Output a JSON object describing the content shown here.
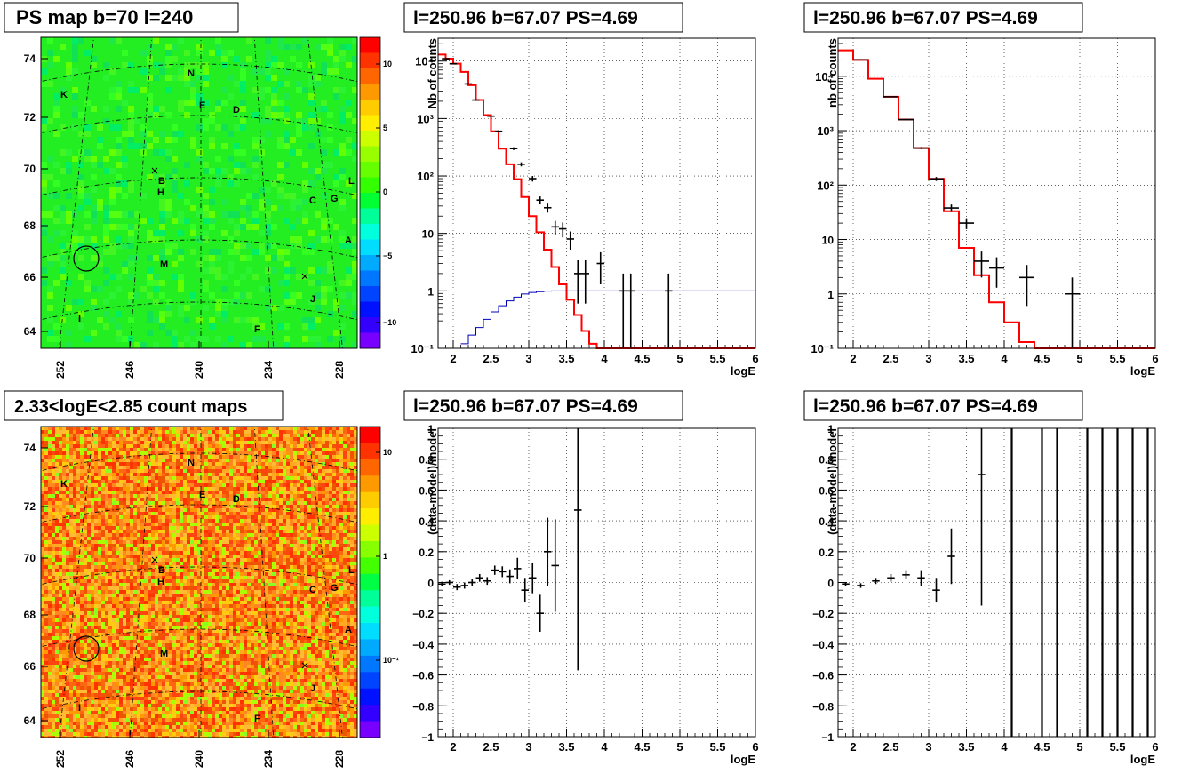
{
  "panels": {
    "map_top": {
      "title": "PS map b=70 l=240",
      "lat_ticks": [
        "64",
        "66",
        "68",
        "70",
        "72",
        "74"
      ],
      "lon_ticks": [
        "252",
        "246",
        "240",
        "234",
        "228"
      ],
      "colorbar_ticks": [
        "10",
        "5",
        "0",
        "−5",
        "−10"
      ],
      "colorbar_colors": [
        "#ff0000",
        "#ff3300",
        "#ff6600",
        "#ff9900",
        "#ffcc00",
        "#ffee00",
        "#ccff00",
        "#99ff00",
        "#66ff00",
        "#33ff00",
        "#00ff33",
        "#00ff99",
        "#00ffdd",
        "#00ddff",
        "#00aaff",
        "#0077ff",
        "#0044ff",
        "#0011ff",
        "#3300ff",
        "#7700ff"
      ],
      "background": "#22ee22",
      "source_labels": [
        "N",
        "K",
        "E",
        "D",
        "B",
        "H",
        "C",
        "G",
        "L",
        "A",
        "M",
        "J",
        "I",
        "F"
      ]
    },
    "map_bottom": {
      "title": "2.33<logE<2.85 count maps",
      "lat_ticks": [
        "64",
        "66",
        "68",
        "70",
        "72",
        "74"
      ],
      "lon_ticks": [
        "252",
        "246",
        "240",
        "234",
        "228"
      ],
      "colorbar_ticks": [
        "10",
        "1",
        "10⁻¹"
      ],
      "background": "#ff8822",
      "source_labels": [
        "N",
        "K",
        "E",
        "D",
        "B",
        "H",
        "C",
        "G",
        "L",
        "A",
        "M",
        "J",
        "I",
        "F"
      ]
    },
    "spec_mid": {
      "title": "l=250.96 b=67.07 PS=4.69"
    },
    "spec_right": {
      "title": "l=250.96 b=67.07 PS=4.69"
    },
    "resid_mid": {
      "title": "l=250.96 b=67.07 PS=4.69"
    },
    "resid_right": {
      "title": "l=250.96 b=67.07 PS=4.69"
    }
  },
  "chart_data": [
    {
      "type": "line",
      "title": "l=250.96 b=67.07 PS=4.69",
      "xlabel": "logE",
      "ylabel": "Nb of counts",
      "xlim": [
        1.8,
        6
      ],
      "ylim": [
        0.1,
        25000
      ],
      "yscale": "log",
      "grid": true,
      "x_ticks": [
        "2",
        "2.5",
        "3",
        "3.5",
        "4",
        "4.5",
        "5",
        "5.5",
        "6"
      ],
      "y_ticks": [
        "10⁻¹",
        "1",
        "10",
        "10²",
        "10³",
        "10⁴"
      ],
      "series": [
        {
          "color": "#ff0000",
          "kind": "step",
          "edges": [
            1.8,
            1.9,
            2.0,
            2.1,
            2.2,
            2.3,
            2.4,
            2.5,
            2.6,
            2.7,
            2.8,
            2.9,
            3.0,
            3.1,
            3.2,
            3.3,
            3.4,
            3.5,
            3.6,
            3.7,
            3.8,
            3.9,
            4.0,
            4.1,
            4.2,
            6.0
          ],
          "values": [
            13000,
            11000,
            9000,
            6500,
            3800,
            2100,
            1150,
            600,
            300,
            160,
            88,
            43,
            20,
            10.5,
            5.2,
            2.6,
            1.3,
            0.7,
            0.38,
            0.2,
            0.12,
            0.1,
            0.1,
            0.1,
            0.1
          ]
        },
        {
          "color": "#0000bb",
          "kind": "step",
          "edges": [
            2.1,
            2.2,
            2.3,
            2.4,
            2.5,
            2.6,
            2.7,
            2.8,
            2.9,
            3.0,
            3.1,
            3.2,
            3.3,
            3.4,
            3.5,
            6.0
          ],
          "values": [
            0.12,
            0.17,
            0.23,
            0.32,
            0.43,
            0.55,
            0.67,
            0.78,
            0.88,
            0.94,
            0.97,
            0.99,
            1.0,
            1.0,
            1.0
          ]
        },
        {
          "color": "#000000",
          "kind": "points",
          "points": [
            {
              "x": 1.9,
              "y": 11000,
              "ylo": 10900,
              "yhi": 11100,
              "xw": 0.05
            },
            {
              "x": 2.0,
              "y": 9000,
              "ylo": 8900,
              "yhi": 9100,
              "xw": 0.05
            },
            {
              "x": 2.2,
              "y": 4000,
              "ylo": 3930,
              "yhi": 4070,
              "xw": 0.05
            },
            {
              "x": 2.3,
              "y": 2100,
              "ylo": 2050,
              "yhi": 2150,
              "xw": 0.05
            },
            {
              "x": 2.5,
              "y": 1100,
              "ylo": 1070,
              "yhi": 1130,
              "xw": 0.05
            },
            {
              "x": 2.6,
              "y": 600,
              "ylo": 575,
              "yhi": 625,
              "xw": 0.05
            },
            {
              "x": 2.8,
              "y": 300,
              "ylo": 283,
              "yhi": 317,
              "xw": 0.05
            },
            {
              "x": 2.9,
              "y": 160,
              "ylo": 147,
              "yhi": 173,
              "xw": 0.05
            },
            {
              "x": 3.05,
              "y": 90,
              "ylo": 80,
              "yhi": 100,
              "xw": 0.05
            },
            {
              "x": 3.15,
              "y": 38,
              "ylo": 32,
              "yhi": 44,
              "xw": 0.05
            },
            {
              "x": 3.25,
              "y": 28,
              "ylo": 23,
              "yhi": 33,
              "xw": 0.05
            },
            {
              "x": 3.35,
              "y": 13,
              "ylo": 9.5,
              "yhi": 16.5,
              "xw": 0.05
            },
            {
              "x": 3.45,
              "y": 12,
              "ylo": 8.5,
              "yhi": 15.5,
              "xw": 0.05
            },
            {
              "x": 3.55,
              "y": 8,
              "ylo": 5.2,
              "yhi": 10.8,
              "xw": 0.05
            },
            {
              "x": 3.65,
              "y": 2,
              "ylo": 0.6,
              "yhi": 3.4,
              "xw": 0.05
            },
            {
              "x": 3.75,
              "y": 2,
              "ylo": 0.6,
              "yhi": 3.4,
              "xw": 0.05
            },
            {
              "x": 3.95,
              "y": 3,
              "ylo": 1.3,
              "yhi": 4.7,
              "xw": 0.05
            },
            {
              "x": 4.25,
              "y": 1,
              "ylo": 0.1,
              "yhi": 2,
              "xw": 0.05
            },
            {
              "x": 4.35,
              "y": 1,
              "ylo": 0.1,
              "yhi": 2,
              "xw": 0.05
            },
            {
              "x": 4.85,
              "y": 1,
              "ylo": 0.1,
              "yhi": 2,
              "xw": 0.05
            }
          ]
        }
      ]
    },
    {
      "type": "line",
      "title": "l=250.96 b=67.07 PS=4.69",
      "xlabel": "logE",
      "ylabel": "nb of counts",
      "xlim": [
        1.8,
        6
      ],
      "ylim": [
        0.1,
        50000
      ],
      "yscale": "log",
      "grid": true,
      "x_ticks": [
        "2",
        "2.5",
        "3",
        "3.5",
        "4",
        "4.5",
        "5",
        "5.5",
        "6"
      ],
      "y_ticks": [
        "10⁻¹",
        "1",
        "10",
        "10²",
        "10³",
        "10⁴"
      ],
      "series": [
        {
          "color": "#ff0000",
          "kind": "step",
          "edges": [
            1.8,
            2.0,
            2.2,
            2.4,
            2.6,
            2.8,
            3.0,
            3.2,
            3.4,
            3.6,
            3.8,
            4.0,
            4.2,
            4.4,
            6.0
          ],
          "values": [
            30000,
            20000,
            9000,
            4200,
            1600,
            480,
            130,
            33,
            7,
            2.2,
            0.7,
            0.3,
            0.13,
            0.1
          ]
        },
        {
          "color": "#000000",
          "kind": "points",
          "points": [
            {
              "x": 2.1,
              "y": 20000,
              "ylo": 19800,
              "yhi": 20200,
              "xw": 0.1
            },
            {
              "x": 2.5,
              "y": 4200,
              "ylo": 4130,
              "yhi": 4270,
              "xw": 0.1
            },
            {
              "x": 2.7,
              "y": 1600,
              "ylo": 1560,
              "yhi": 1640,
              "xw": 0.1
            },
            {
              "x": 2.9,
              "y": 480,
              "ylo": 460,
              "yhi": 500,
              "xw": 0.1
            },
            {
              "x": 3.1,
              "y": 130,
              "ylo": 119,
              "yhi": 141,
              "xw": 0.1
            },
            {
              "x": 3.3,
              "y": 38,
              "ylo": 32,
              "yhi": 44,
              "xw": 0.1
            },
            {
              "x": 3.5,
              "y": 20,
              "ylo": 15.5,
              "yhi": 24.5,
              "xw": 0.1
            },
            {
              "x": 3.7,
              "y": 4,
              "ylo": 2,
              "yhi": 6,
              "xw": 0.1
            },
            {
              "x": 3.9,
              "y": 3,
              "ylo": 1.3,
              "yhi": 4.7,
              "xw": 0.1
            },
            {
              "x": 4.3,
              "y": 2,
              "ylo": 0.6,
              "yhi": 3.4,
              "xw": 0.1
            },
            {
              "x": 4.9,
              "y": 1,
              "ylo": 0.1,
              "yhi": 2,
              "xw": 0.1
            }
          ]
        }
      ]
    },
    {
      "type": "scatter",
      "title": "l=250.96 b=67.07 PS=4.69",
      "xlabel": "logE",
      "ylabel": "(data-model)/model",
      "xlim": [
        1.8,
        6
      ],
      "ylim": [
        -1,
        1
      ],
      "grid": true,
      "x_ticks": [
        "2",
        "2.5",
        "3",
        "3.5",
        "4",
        "4.5",
        "5",
        "5.5",
        "6"
      ],
      "y_ticks": [
        "−1",
        "−0.8",
        "−0.6",
        "−0.4",
        "−0.2",
        "0",
        "0.2",
        "0.4",
        "0.6",
        "0.8",
        "1"
      ],
      "points": [
        {
          "x": 1.85,
          "y": -0.01,
          "err": 0.015
        },
        {
          "x": 1.95,
          "y": 0.0,
          "err": 0.015
        },
        {
          "x": 2.05,
          "y": -0.03,
          "err": 0.02
        },
        {
          "x": 2.15,
          "y": -0.02,
          "err": 0.02
        },
        {
          "x": 2.25,
          "y": 0.0,
          "err": 0.02
        },
        {
          "x": 2.35,
          "y": 0.03,
          "err": 0.025
        },
        {
          "x": 2.45,
          "y": 0.01,
          "err": 0.025
        },
        {
          "x": 2.55,
          "y": 0.08,
          "err": 0.03
        },
        {
          "x": 2.65,
          "y": 0.07,
          "err": 0.035
        },
        {
          "x": 2.75,
          "y": 0.04,
          "err": 0.045
        },
        {
          "x": 2.85,
          "y": 0.09,
          "err": 0.07
        },
        {
          "x": 2.95,
          "y": -0.05,
          "err": 0.08
        },
        {
          "x": 3.05,
          "y": 0.03,
          "err": 0.1
        },
        {
          "x": 3.15,
          "y": -0.2,
          "err": 0.12
        },
        {
          "x": 3.25,
          "y": 0.2,
          "err": 0.22
        },
        {
          "x": 3.35,
          "y": 0.11,
          "err": 0.3
        },
        {
          "x": 3.65,
          "y": 0.47,
          "err": 1.04
        }
      ]
    },
    {
      "type": "scatter",
      "title": "l=250.96 b=67.07 PS=4.69",
      "xlabel": "logE",
      "ylabel": "(data-model)/model",
      "xlim": [
        1.8,
        6
      ],
      "ylim": [
        -1,
        1
      ],
      "grid": true,
      "x_ticks": [
        "2",
        "2.5",
        "3",
        "3.5",
        "4",
        "4.5",
        "5",
        "5.5",
        "6"
      ],
      "y_ticks": [
        "−1",
        "−0.8",
        "−0.6",
        "−0.4",
        "−0.2",
        "0",
        "0.2",
        "0.4",
        "0.6",
        "0.8",
        "1"
      ],
      "points": [
        {
          "x": 1.9,
          "y": -0.01,
          "err": 0.01
        },
        {
          "x": 2.1,
          "y": -0.02,
          "err": 0.015
        },
        {
          "x": 2.3,
          "y": 0.01,
          "err": 0.02
        },
        {
          "x": 2.5,
          "y": 0.03,
          "err": 0.025
        },
        {
          "x": 2.7,
          "y": 0.05,
          "err": 0.03
        },
        {
          "x": 2.9,
          "y": 0.03,
          "err": 0.05
        },
        {
          "x": 3.1,
          "y": -0.05,
          "err": 0.08
        },
        {
          "x": 3.3,
          "y": 0.17,
          "err": 0.18
        },
        {
          "x": 3.7,
          "y": 0.7,
          "err": 0.85
        }
      ],
      "vertical_lines_x": [
        4.1,
        4.5,
        4.7,
        5.1,
        5.3,
        5.5,
        5.7,
        5.9
      ]
    }
  ]
}
